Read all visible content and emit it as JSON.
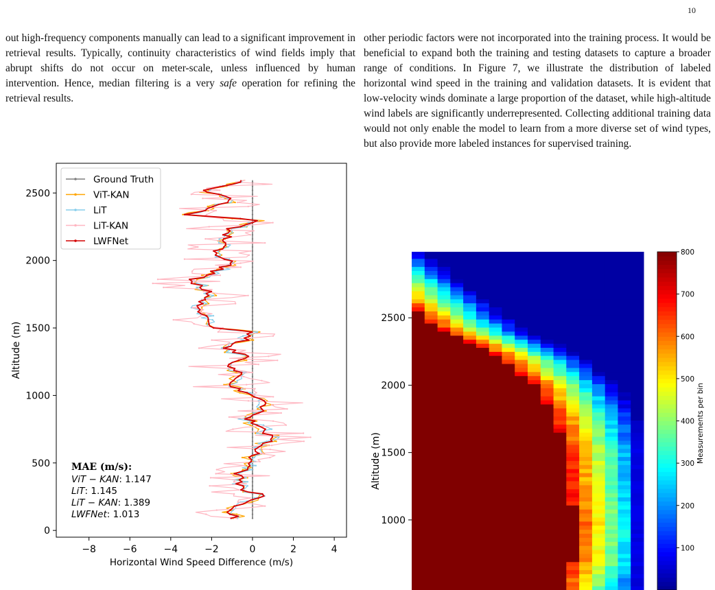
{
  "page": {
    "number": "10"
  },
  "left_column": {
    "paragraph_before": "out high-frequency components manually can lead to a significant improvement in retrieval results. Typically, continuity characteristics of wind fields imply that abrupt shifts do not occur on meter-scale, unless influenced by human intervention. Hence, median filtering is a very ",
    "paragraph_emphasis": "safe",
    "paragraph_after": " operation for refining the retrieval results."
  },
  "right_column": {
    "paragraph": "other periodic factors were not incorporated into the training process. It would be beneficial to expand both the training and testing datasets to capture a broader range of conditions. In Figure 7, we illustrate the distribution of labeled horizontal wind speed in the training and validation datasets. It is evident that low-velocity winds dominate a large proportion of the dataset, while high-altitude wind labels are significantly underrepresented. Collecting additional training data would not only enable the model to learn from a more diverse set of wind types, but also provide more labeled instances for supervised training."
  },
  "chart_data": [
    {
      "type": "line",
      "xlabel": "Horizontal Wind Speed Difference (m/s)",
      "ylabel": "Altitude (m)",
      "xlim": [
        -9.6,
        4.6
      ],
      "ylim": [
        -50,
        2720
      ],
      "xticks": [
        -8,
        -6,
        -4,
        -2,
        0,
        2,
        4
      ],
      "xtick_labels": [
        "−8",
        "−6",
        "−4",
        "−2",
        "0",
        "2",
        "4"
      ],
      "yticks": [
        0,
        500,
        1000,
        1500,
        2000,
        2500
      ],
      "ytick_labels": [
        "0",
        "500",
        "1000",
        "1500",
        "2000",
        "2500"
      ],
      "legend_placement": "top-left",
      "grid": false,
      "altitude_range": [
        90,
        2600
      ],
      "altitude_step": 15,
      "series": [
        {
          "name": "Ground Truth",
          "color": "#7f7f7f",
          "style": "ground"
        },
        {
          "name": "ViT-KAN",
          "color": "#ffa500",
          "noise": 0.4
        },
        {
          "name": "LiT",
          "color": "#87ceeb",
          "noise": 0.35
        },
        {
          "name": "LiT-KAN",
          "color": "#ffb6c1",
          "noise": 2.0
        },
        {
          "name": "LWFNet",
          "color": "#d40000",
          "noise": 0.0
        }
      ],
      "profile_knots": [
        [
          90,
          -0.8
        ],
        [
          150,
          -1.2
        ],
        [
          210,
          -0.4
        ],
        [
          260,
          0.6
        ],
        [
          300,
          -0.5
        ],
        [
          350,
          -0.6
        ],
        [
          420,
          -0.7
        ],
        [
          480,
          -0.2
        ],
        [
          520,
          -0.3
        ],
        [
          560,
          0.1
        ],
        [
          620,
          0.4
        ],
        [
          680,
          0.9
        ],
        [
          750,
          0.6
        ],
        [
          820,
          -0.2
        ],
        [
          880,
          0.3
        ],
        [
          950,
          0.8
        ],
        [
          1000,
          0.0
        ],
        [
          1080,
          -1.3
        ],
        [
          1150,
          -0.6
        ],
        [
          1230,
          -1.2
        ],
        [
          1280,
          -0.2
        ],
        [
          1350,
          -1.2
        ],
        [
          1420,
          -0.3
        ],
        [
          1470,
          0.0
        ],
        [
          1510,
          -2.3
        ],
        [
          1600,
          -2.4
        ],
        [
          1700,
          -2.5
        ],
        [
          1760,
          -2.1
        ],
        [
          1850,
          -3.0
        ],
        [
          1920,
          -1.8
        ],
        [
          1990,
          -1.0
        ],
        [
          2050,
          -1.8
        ],
        [
          2150,
          -1.2
        ],
        [
          2220,
          -1.3
        ],
        [
          2300,
          0.1
        ],
        [
          2340,
          -3.2
        ],
        [
          2400,
          -1.8
        ],
        [
          2460,
          -1.0
        ],
        [
          2520,
          -2.5
        ],
        [
          2560,
          -0.9
        ],
        [
          2590,
          -0.8
        ]
      ],
      "mae": {
        "heading": "MAE (m/s):",
        "entries": [
          {
            "name": "ViT − KAN",
            "value": ": 1.147"
          },
          {
            "name": "LiT",
            "value": ": 1.145"
          },
          {
            "name": "LiT − KAN",
            "value": ": 1.389"
          },
          {
            "name": "LWFNet",
            "value": ": 1.013"
          }
        ]
      }
    },
    {
      "type": "heatmap",
      "ylabel": "Altitude (m)",
      "colorbar_label": "Measurements per bin",
      "yticks": [
        1000,
        1500,
        2000,
        2500
      ],
      "ytick_labels": [
        "1000",
        "1500",
        "2000",
        "2500"
      ],
      "ylim": [
        480,
        2990
      ],
      "colorbar_ticks": [
        100,
        200,
        300,
        400,
        500,
        600,
        700,
        800
      ],
      "colorbar_range": [
        0,
        800
      ],
      "columns": 18,
      "row_height": 30,
      "saturation_boundary": [
        [
          480,
          11.0
        ],
        [
          700,
          12.0
        ],
        [
          1000,
          12.2
        ],
        [
          1200,
          11.8
        ],
        [
          1500,
          11.6
        ],
        [
          1800,
          10.5
        ],
        [
          2000,
          9.0
        ],
        [
          2200,
          6.5
        ],
        [
          2300,
          4.5
        ],
        [
          2400,
          2.0
        ],
        [
          2500,
          0.5
        ],
        [
          2990,
          -6.0
        ]
      ]
    }
  ]
}
